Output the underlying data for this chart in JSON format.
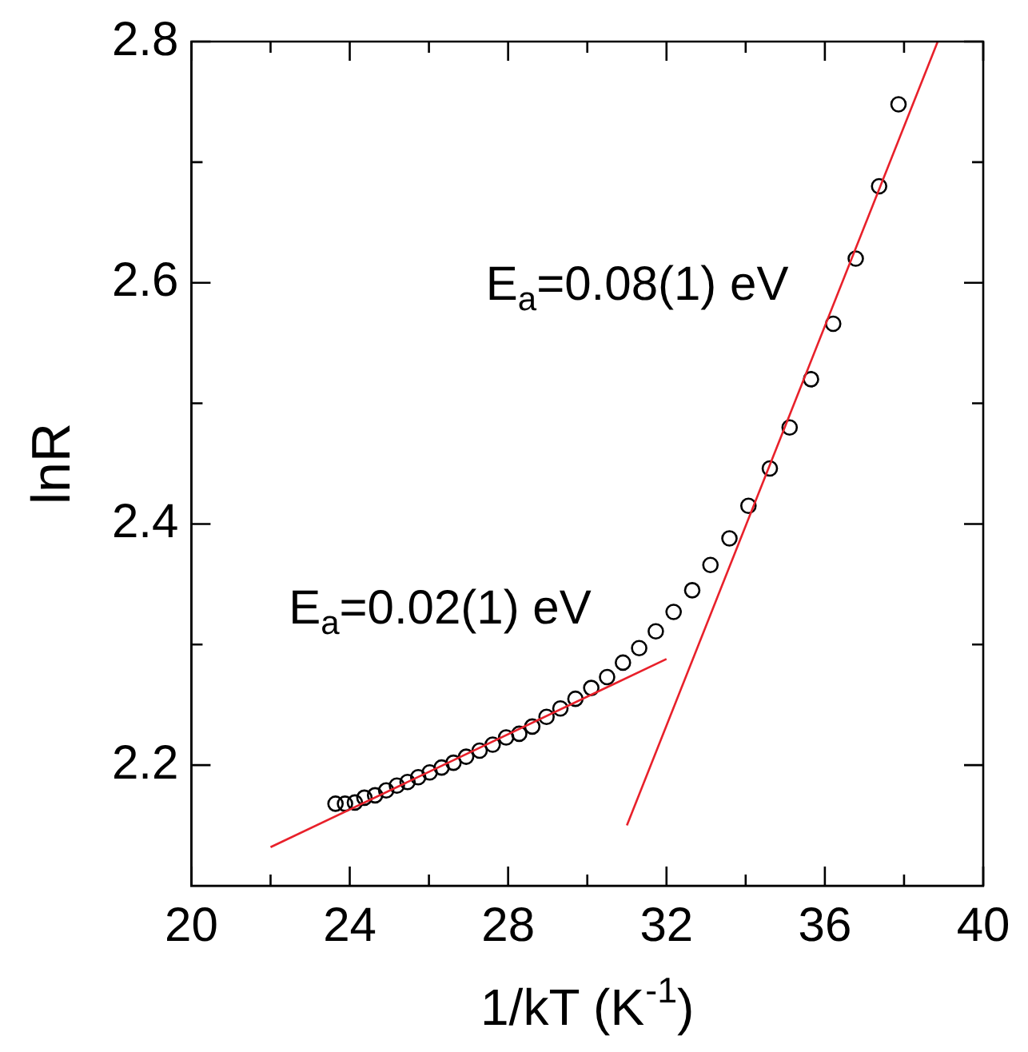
{
  "chart_data": {
    "type": "scatter",
    "xlabel": "1/kT (K$^{-1}$)",
    "ylabel": "lnR",
    "legend": false,
    "grid": false,
    "xlim": [
      20,
      40
    ],
    "ylim": [
      2.1,
      2.8
    ],
    "xticks": [
      20,
      {
        "value": 22,
        "label": null
      },
      24,
      {
        "value": 26,
        "label": null
      },
      28,
      {
        "value": 30,
        "label": null
      },
      32,
      {
        "value": 34,
        "label": null
      },
      36,
      {
        "value": 38,
        "label": null
      },
      40
    ],
    "yticks": [
      2.2,
      {
        "value": 2.3,
        "label": null
      },
      2.4,
      {
        "value": 2.5,
        "label": null
      },
      2.6,
      {
        "value": 2.7,
        "label": null
      },
      2.8
    ],
    "series": [
      {
        "marker": "circle",
        "color": "#000000",
        "x": [
          23.64,
          23.88,
          24.13,
          24.37,
          24.64,
          24.92,
          25.19,
          25.46,
          25.73,
          26.02,
          26.32,
          26.62,
          26.94,
          27.28,
          27.61,
          27.95,
          28.28,
          28.61,
          28.97,
          29.32,
          29.7,
          30.1,
          30.5,
          30.9,
          31.31,
          31.73,
          32.18,
          32.65,
          33.11,
          33.59,
          34.07,
          34.61,
          35.11,
          35.65,
          36.21,
          36.78,
          37.37,
          37.86
        ],
        "values": [
          2.168,
          2.168,
          2.169,
          2.173,
          2.175,
          2.179,
          2.183,
          2.186,
          2.19,
          2.194,
          2.198,
          2.202,
          2.207,
          2.212,
          2.217,
          2.223,
          2.226,
          2.232,
          2.24,
          2.247,
          2.255,
          2.264,
          2.273,
          2.285,
          2.297,
          2.311,
          2.327,
          2.345,
          2.366,
          2.388,
          2.415,
          2.446,
          2.48,
          2.52,
          2.566,
          2.62,
          2.68,
          2.748
        ]
      },
      {
        "type": "line",
        "marker": "none",
        "color": "#e8202a",
        "x": [
          22,
          32
        ],
        "values": [
          2.132,
          2.288
        ]
      },
      {
        "type": "line",
        "marker": "none",
        "color": "#e8202a",
        "x": [
          31,
          38.85
        ],
        "values": [
          2.15,
          2.8
        ]
      }
    ],
    "annotations": [
      "E$_{a}$=0.02(1) eV",
      "E$_{a}$=0.08(1) eV"
    ]
  }
}
